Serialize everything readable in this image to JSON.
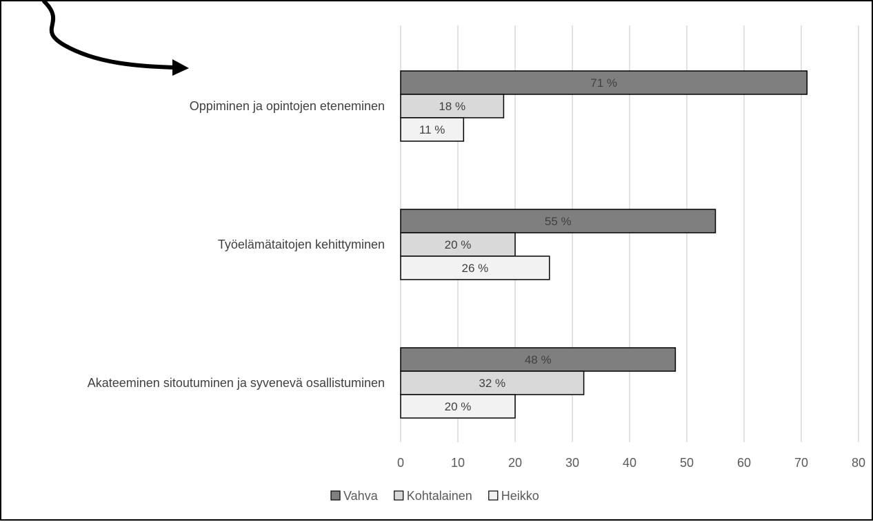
{
  "chart_data": {
    "type": "bar",
    "orientation": "horizontal",
    "categories": [
      "Oppiminen ja opintojen eteneminen",
      "Työelämätaitojen kehittyminen",
      "Akateeminen sitoutuminen ja syvenevä osallistuminen"
    ],
    "series": [
      {
        "name": "Vahva",
        "values": [
          71,
          55,
          48
        ],
        "labels": [
          "71 %",
          "55 %",
          "48 %"
        ],
        "color": "#7f7f7f"
      },
      {
        "name": "Kohtalainen",
        "values": [
          18,
          20,
          32
        ],
        "labels": [
          "18 %",
          "20 %",
          "32 %"
        ],
        "color": "#d9d9d9"
      },
      {
        "name": "Heikko",
        "values": [
          11,
          26,
          20
        ],
        "labels": [
          "11 %",
          "26 %",
          "20 %"
        ],
        "color": "#f2f2f2"
      }
    ],
    "xlim": [
      0,
      80
    ],
    "xticks": [
      "0",
      "10",
      "20",
      "30",
      "40",
      "50",
      "60",
      "70",
      "80"
    ],
    "grid": true,
    "legend_position": "bottom",
    "title": "",
    "xlabel": "",
    "ylabel": ""
  },
  "colors": {
    "grid": "#d9d9d9",
    "bar_stroke": "#000000",
    "arrow": "#000000"
  },
  "icons": {
    "decoration": "curved-arrow-icon"
  }
}
